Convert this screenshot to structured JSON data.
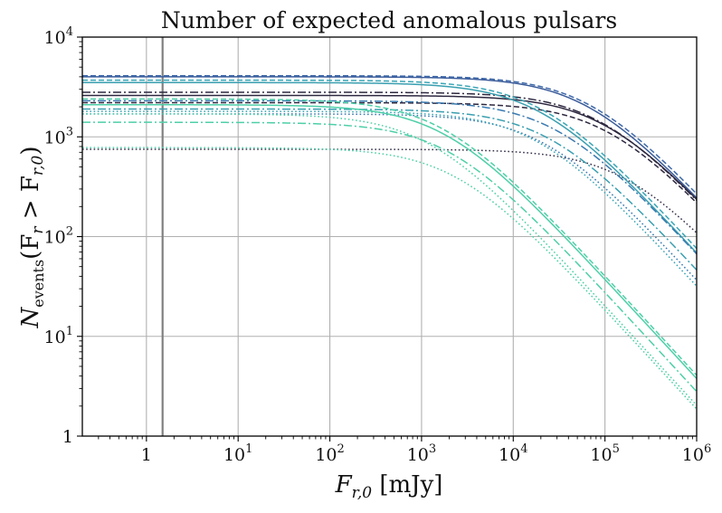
{
  "chart_data": {
    "type": "line",
    "title": "Number of expected anomalous pulsars",
    "xlabel": {
      "main": "F",
      "sub": "r,0",
      "unit": " [mJy]"
    },
    "ylabel": {
      "main": "N",
      "sub": "events",
      "arg": "(F",
      "argsub": "r",
      "op": " > F",
      "argsub2": "r,0",
      "close": ")"
    },
    "x_scale": "log",
    "y_scale": "log",
    "xlim": [
      0.2,
      1000000
    ],
    "ylim": [
      1,
      10000
    ],
    "grid": true,
    "vline": {
      "x": 1.5,
      "color": "#808080"
    },
    "x_ticks": [
      {
        "v": 1,
        "base": "1",
        "exp": ""
      },
      {
        "v": 10,
        "base": "10",
        "exp": "1"
      },
      {
        "v": 100,
        "base": "10",
        "exp": "2"
      },
      {
        "v": 1000,
        "base": "10",
        "exp": "3"
      },
      {
        "v": 10000,
        "base": "10",
        "exp": "4"
      },
      {
        "v": 100000,
        "base": "10",
        "exp": "5"
      },
      {
        "v": 1000000,
        "base": "10",
        "exp": "6"
      }
    ],
    "y_ticks": [
      {
        "v": 1,
        "base": "1",
        "exp": ""
      },
      {
        "v": 10,
        "base": "10",
        "exp": "1"
      },
      {
        "v": 100,
        "base": "10",
        "exp": "2"
      },
      {
        "v": 1000,
        "base": "10",
        "exp": "3"
      },
      {
        "v": 10000,
        "base": "10",
        "exp": "4"
      }
    ],
    "series": [
      {
        "style": "solid",
        "color": "#3b5c9a",
        "N0": 4000,
        "knee": 65000
      },
      {
        "style": "dashed",
        "color": "#3e68a8",
        "N0": 4100,
        "knee": 70000
      },
      {
        "style": "solid",
        "color": "#2e2840",
        "N0": 2600,
        "knee": 100000
      },
      {
        "style": "dashdot",
        "color": "#2e2840",
        "N0": 2800,
        "knee": 90000
      },
      {
        "style": "dashed",
        "color": "#2e2840",
        "N0": 2200,
        "knee": 110000
      },
      {
        "style": "dotted",
        "color": "#35304a",
        "N0": 750,
        "knee": 170000
      },
      {
        "style": "solid",
        "color": "#3a9fb0",
        "N0": 3500,
        "knee": 20000
      },
      {
        "style": "dashed",
        "color": "#3aa5b5",
        "N0": 3700,
        "knee": 21000
      },
      {
        "style": "dashdot",
        "color": "#3a7ab0",
        "N0": 2300,
        "knee": 30000
      },
      {
        "style": "dashdot",
        "color": "#3a9fb0",
        "N0": 1900,
        "knee": 25000
      },
      {
        "style": "dotted",
        "color": "#3a7ab0",
        "N0": 1700,
        "knee": 22000
      },
      {
        "style": "dotted",
        "color": "#3aa5b5",
        "N0": 1800,
        "knee": 18000
      },
      {
        "style": "solid",
        "color": "#4ecfa8",
        "N0": 2100,
        "knee": 1800
      },
      {
        "style": "dashed",
        "color": "#4ecfa8",
        "N0": 2400,
        "knee": 1700
      },
      {
        "style": "dashdot",
        "color": "#4ecfa8",
        "N0": 1400,
        "knee": 2000
      },
      {
        "style": "dotted",
        "color": "#4ecfa8",
        "N0": 780,
        "knee": 2400
      },
      {
        "style": "dotted",
        "color": "#4ecfa8",
        "N0": 1700,
        "knee": 1200
      }
    ]
  }
}
